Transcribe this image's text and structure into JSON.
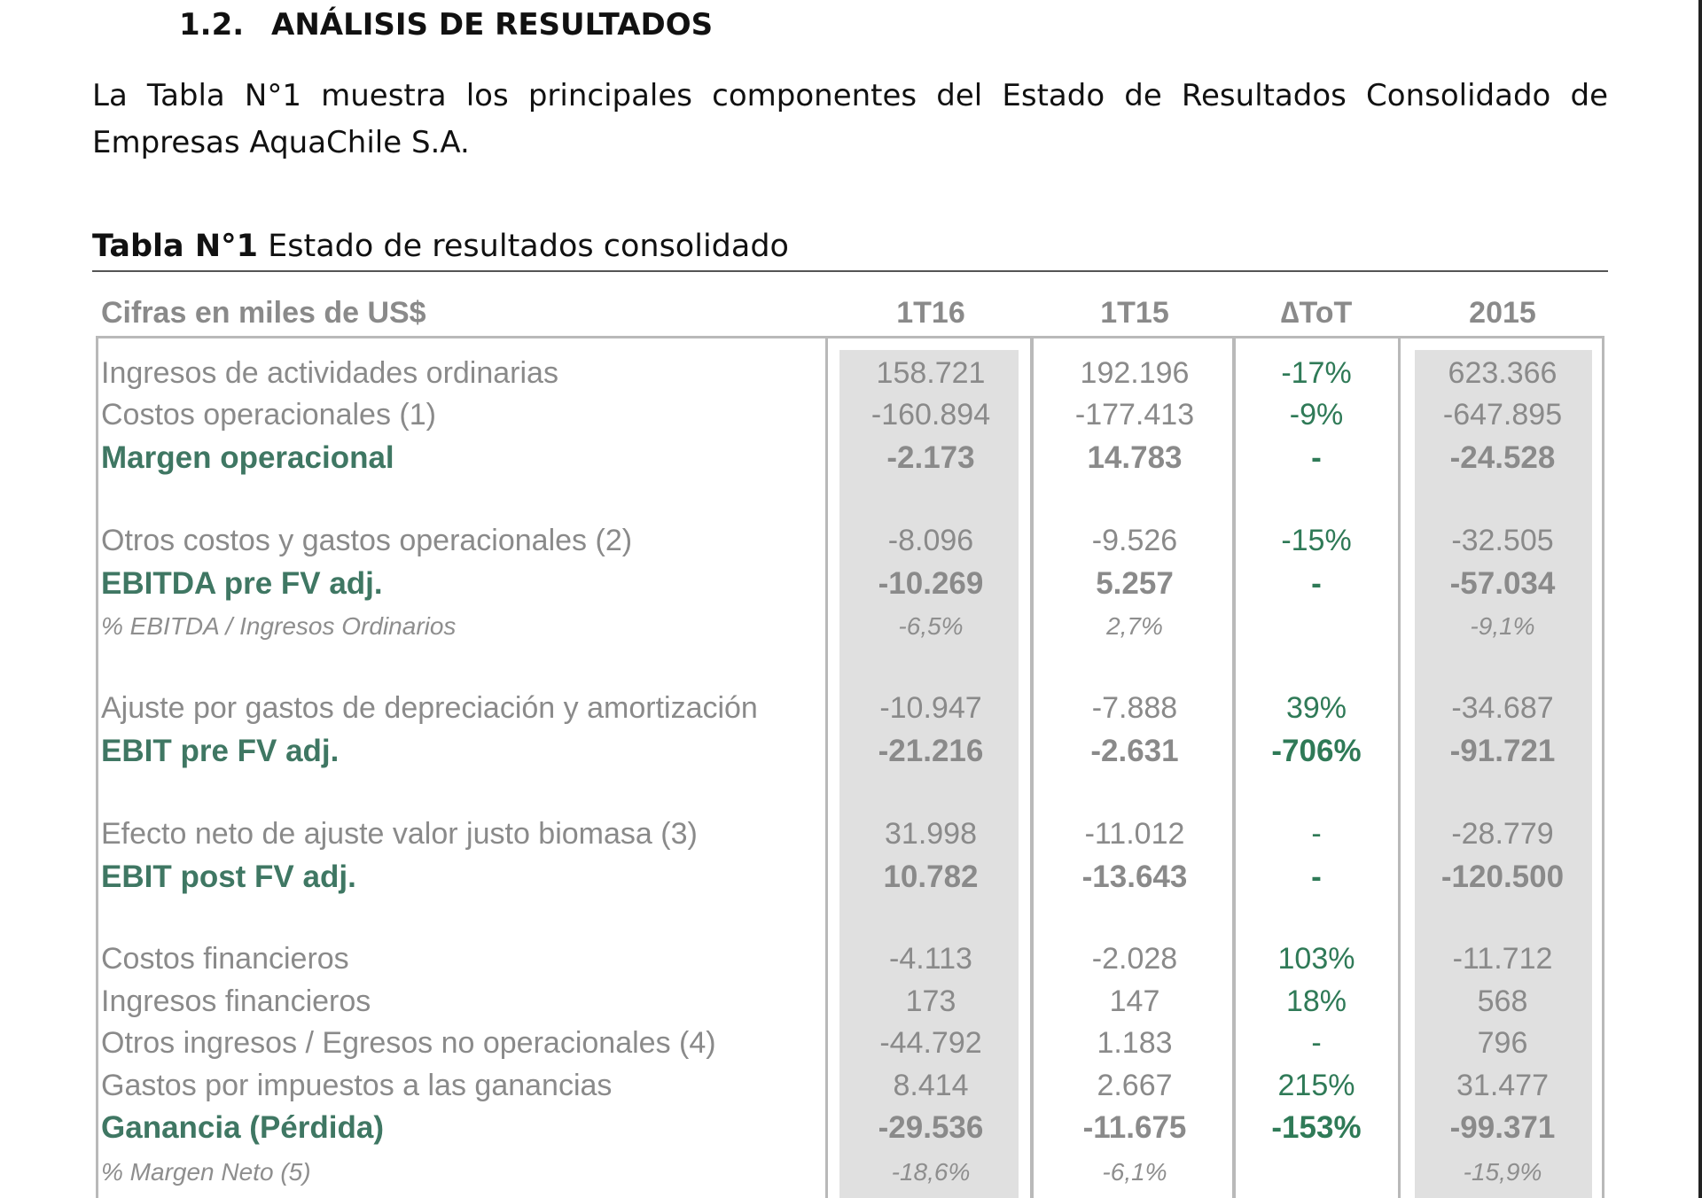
{
  "heading": {
    "number": "1.2.",
    "title": "ANÁLISIS DE RESULTADOS"
  },
  "intro_text": "La Tabla N°1 muestra los principales componentes del Estado de Resultados Consolidado de Empresas AquaChile S.A.",
  "table_caption": {
    "label": "Tabla N°1",
    "title": "Estado de resultados consolidado"
  },
  "table": {
    "header": {
      "label": "Cifras en miles de US$",
      "c1": "1T16",
      "c2": "1T15",
      "c3": "∆ToT",
      "c4": "2015"
    },
    "rows": [
      {
        "label": "Ingresos de actividades ordinarias",
        "c1": "158.721",
        "c2": "192.196",
        "c3": "-17%",
        "c4": "623.366",
        "style": "normal"
      },
      {
        "label": "Costos operacionales (1)",
        "c1": "-160.894",
        "c2": "-177.413",
        "c3": "-9%",
        "c4": "-647.895",
        "style": "normal"
      },
      {
        "label": "Margen operacional",
        "c1": "-2.173",
        "c2": "14.783",
        "c3": "-",
        "c4": "-24.528",
        "style": "bold"
      },
      {
        "label": "Otros costos y gastos operacionales (2)",
        "c1": "-8.096",
        "c2": "-9.526",
        "c3": "-15%",
        "c4": "-32.505",
        "style": "normal"
      },
      {
        "label": "EBITDA pre FV adj.",
        "c1": "-10.269",
        "c2": "5.257",
        "c3": "-",
        "c4": "-57.034",
        "style": "bold"
      },
      {
        "label": "% EBITDA / Ingresos Ordinarios",
        "c1": "-6,5%",
        "c2": "2,7%",
        "c3": "",
        "c4": "-9,1%",
        "style": "italic"
      },
      {
        "label": "Ajuste por gastos de depreciación y amortización",
        "c1": "-10.947",
        "c2": "-7.888",
        "c3": "39%",
        "c4": "-34.687",
        "style": "normal"
      },
      {
        "label": "EBIT pre FV adj.",
        "c1": "-21.216",
        "c2": "-2.631",
        "c3": "-706%",
        "c4": "-91.721",
        "style": "bold"
      },
      {
        "label": "Efecto neto de ajuste valor justo biomasa (3)",
        "c1": "31.998",
        "c2": "-11.012",
        "c3": "-",
        "c4": "-28.779",
        "style": "normal"
      },
      {
        "label": "EBIT post FV adj.",
        "c1": "10.782",
        "c2": "-13.643",
        "c3": "-",
        "c4": "-120.500",
        "style": "bold"
      },
      {
        "label": "Costos financieros",
        "c1": "-4.113",
        "c2": "-2.028",
        "c3": "103%",
        "c4": "-11.712",
        "style": "normal"
      },
      {
        "label": "Ingresos financieros",
        "c1": "173",
        "c2": "147",
        "c3": "18%",
        "c4": "568",
        "style": "normal"
      },
      {
        "label": "Otros ingresos / Egresos no operacionales (4)",
        "c1": "-44.792",
        "c2": "1.183",
        "c3": "-",
        "c4": "796",
        "style": "normal"
      },
      {
        "label": "Gastos por impuestos a las ganancias",
        "c1": "8.414",
        "c2": "2.667",
        "c3": "215%",
        "c4": "31.477",
        "style": "normal"
      },
      {
        "label": "Ganancia (Pérdida)",
        "c1": "-29.536",
        "c2": "-11.675",
        "c3": "-153%",
        "c4": "-99.371",
        "style": "bold"
      },
      {
        "label": "% Margen Neto (5)",
        "c1": "-18,6%",
        "c2": "-6,1%",
        "c3": "",
        "c4": "-15,9%",
        "style": "italic"
      }
    ]
  },
  "colors": {
    "text": "#111111",
    "table_text_gray": "#8a8a8a",
    "bold_label_green": "#3f7763",
    "delta_green": "#2f7a57",
    "column_shade": "#e0e0e0",
    "box_border": "#b9b9b9"
  }
}
